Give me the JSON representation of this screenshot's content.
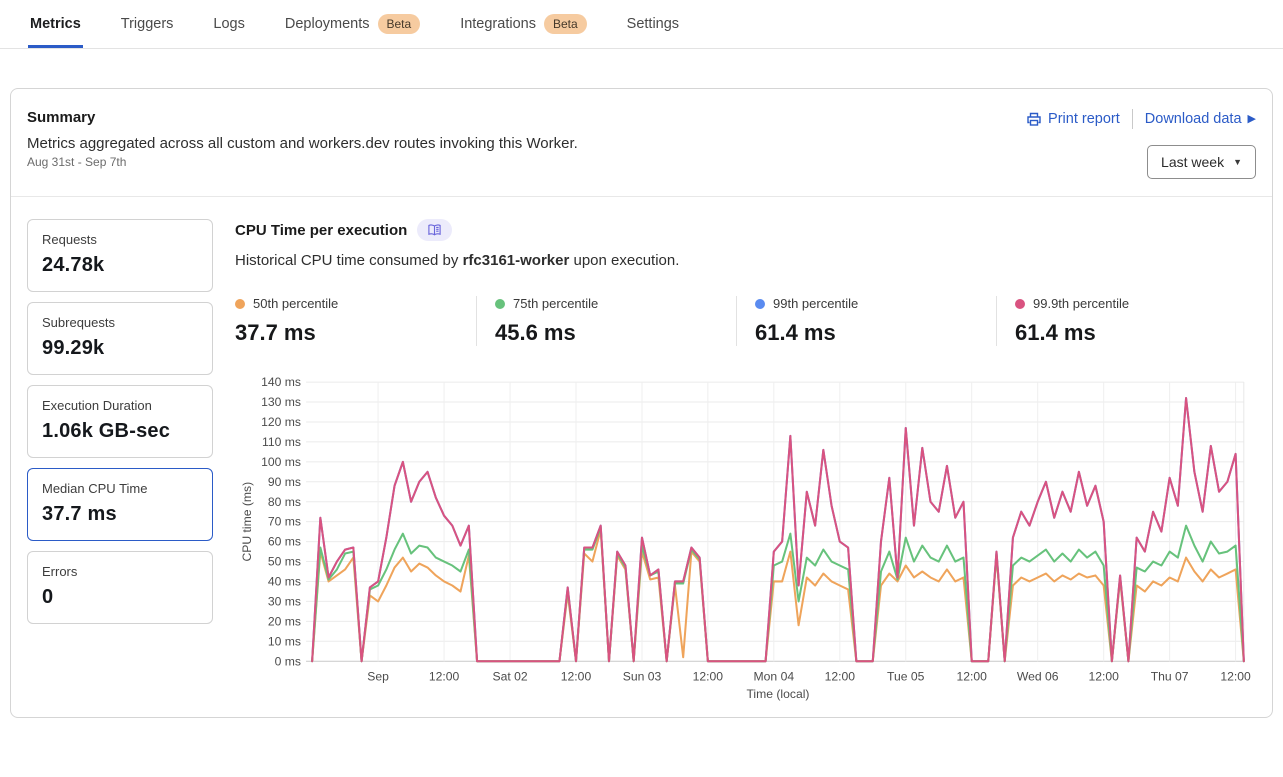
{
  "nav": {
    "tabs": [
      {
        "label": "Metrics",
        "active": true
      },
      {
        "label": "Triggers"
      },
      {
        "label": "Logs"
      },
      {
        "label": "Deployments",
        "badge": "Beta"
      },
      {
        "label": "Integrations",
        "badge": "Beta"
      },
      {
        "label": "Settings"
      }
    ]
  },
  "summary": {
    "title": "Summary",
    "description": "Metrics aggregated across all custom and workers.dev routes invoking this Worker.",
    "date_range": "Aug 31st - Sep 7th",
    "print_report": "Print report",
    "download_data": "Download data",
    "time_range": "Last week"
  },
  "stats": [
    {
      "label": "Requests",
      "value": "24.78k",
      "selected": false
    },
    {
      "label": "Subrequests",
      "value": "99.29k",
      "selected": false
    },
    {
      "label": "Execution Duration",
      "value": "1.06k GB-sec",
      "selected": false
    },
    {
      "label": "Median CPU Time",
      "value": "37.7 ms",
      "selected": true
    },
    {
      "label": "Errors",
      "value": "0",
      "selected": false
    }
  ],
  "chart": {
    "title": "CPU Time per execution",
    "subtitle_prefix": "Historical CPU time consumed by ",
    "worker_name": "rfc3161-worker",
    "subtitle_suffix": " upon execution.",
    "percentiles": [
      {
        "label": "50th percentile",
        "value": "37.7 ms",
        "color": "#EFA45B"
      },
      {
        "label": "75th percentile",
        "value": "45.6 ms",
        "color": "#67C27C"
      },
      {
        "label": "99th percentile",
        "value": "61.4 ms",
        "color": "#5A8BF0"
      },
      {
        "label": "99.9th percentile",
        "value": "61.4 ms",
        "color": "#D95380"
      }
    ]
  },
  "colors": {
    "accent_blue": "#2B5BC7",
    "beta_badge_bg": "#F6CBA0",
    "doc_pill_bg": "#ECEBFB",
    "doc_icon_purple": "#6965DB"
  },
  "chart_data": {
    "type": "line",
    "title": "CPU Time per execution",
    "xlabel": "Time (local)",
    "ylabel": "CPU time (ms)",
    "ylim": [
      0,
      140
    ],
    "grid": true,
    "legend_position": "top",
    "x_range": "Aug 31 ~12:00 to Sep 7 ~13:30 local, one point per 1.5 h",
    "y_ticks": [
      "0 ms",
      "10 ms",
      "20 ms",
      "30 ms",
      "40 ms",
      "50 ms",
      "60 ms",
      "70 ms",
      "80 ms",
      "90 ms",
      "100 ms",
      "110 ms",
      "120 ms",
      "130 ms",
      "140 ms"
    ],
    "x_tick_labels": [
      "Sep",
      "12:00",
      "Sat 02",
      "12:00",
      "Sun 03",
      "12:00",
      "Mon 04",
      "12:00",
      "Tue 05",
      "12:00",
      "Wed 06",
      "12:00",
      "Thu 07",
      "12:00"
    ],
    "x_tick_indices": [
      8,
      16,
      24,
      32,
      40,
      48,
      56,
      64,
      72,
      80,
      88,
      96,
      104,
      112
    ],
    "draw_order": [
      2,
      0,
      1,
      3
    ],
    "series": [
      {
        "name": "50th percentile",
        "color": "#EFA45B",
        "values": [
          0,
          55,
          40,
          43,
          46,
          52,
          0,
          33,
          30,
          38,
          47,
          52,
          45,
          49,
          47,
          43,
          40,
          38,
          35,
          53,
          0,
          0,
          0,
          0,
          0,
          0,
          0,
          0,
          0,
          0,
          0,
          34,
          0,
          54,
          50,
          66,
          0,
          53,
          46,
          0,
          55,
          41,
          42,
          0,
          38,
          2,
          55,
          50,
          0,
          0,
          0,
          0,
          0,
          0,
          0,
          0,
          40,
          40,
          55,
          18,
          42,
          38,
          44,
          40,
          38,
          36,
          0,
          0,
          0,
          38,
          44,
          40,
          48,
          42,
          45,
          42,
          40,
          46,
          40,
          42,
          0,
          0,
          0,
          53,
          0,
          38,
          42,
          40,
          42,
          44,
          40,
          43,
          41,
          44,
          42,
          43,
          38,
          0,
          41,
          0,
          38,
          35,
          40,
          38,
          42,
          40,
          52,
          45,
          40,
          46,
          42,
          44,
          46,
          0
        ]
      },
      {
        "name": "75th percentile",
        "color": "#67C27C",
        "values": [
          0,
          57,
          41,
          46,
          54,
          55,
          0,
          36,
          38,
          46,
          56,
          64,
          54,
          58,
          57,
          52,
          50,
          48,
          45,
          56,
          0,
          0,
          0,
          0,
          0,
          0,
          0,
          0,
          0,
          0,
          0,
          36,
          0,
          56,
          56,
          67,
          0,
          54,
          47,
          0,
          58,
          43,
          45,
          0,
          39,
          39,
          56,
          51,
          0,
          0,
          0,
          0,
          0,
          0,
          0,
          0,
          48,
          50,
          64,
          30,
          52,
          48,
          56,
          50,
          48,
          46,
          0,
          0,
          0,
          45,
          55,
          41,
          62,
          50,
          58,
          52,
          50,
          58,
          50,
          52,
          0,
          0,
          0,
          54,
          0,
          48,
          52,
          50,
          53,
          56,
          50,
          54,
          50,
          56,
          52,
          55,
          48,
          0,
          42,
          0,
          47,
          45,
          50,
          48,
          55,
          52,
          68,
          58,
          50,
          60,
          54,
          55,
          58,
          0
        ]
      },
      {
        "name": "99th percentile",
        "color": "#5A8BF0",
        "values": [
          0,
          72,
          42,
          50,
          56,
          57,
          0,
          37,
          40,
          62,
          88,
          100,
          80,
          90,
          95,
          82,
          73,
          68,
          58,
          68,
          0,
          0,
          0,
          0,
          0,
          0,
          0,
          0,
          0,
          0,
          0,
          37,
          0,
          57,
          57,
          68,
          0,
          55,
          48,
          0,
          62,
          43,
          46,
          0,
          40,
          40,
          57,
          52,
          0,
          0,
          0,
          0,
          0,
          0,
          0,
          0,
          55,
          60,
          113,
          38,
          85,
          68,
          106,
          78,
          60,
          57,
          0,
          0,
          0,
          60,
          92,
          42,
          117,
          68,
          107,
          80,
          75,
          98,
          72,
          80,
          0,
          0,
          0,
          55,
          0,
          62,
          75,
          68,
          80,
          90,
          72,
          85,
          75,
          95,
          78,
          88,
          70,
          0,
          43,
          0,
          62,
          55,
          75,
          65,
          92,
          78,
          132,
          95,
          75,
          108,
          85,
          90,
          104,
          0
        ]
      },
      {
        "name": "99.9th percentile",
        "color": "#D95380",
        "values": [
          0,
          72,
          42,
          50,
          56,
          57,
          0,
          37,
          40,
          62,
          88,
          100,
          80,
          90,
          95,
          82,
          73,
          68,
          58,
          68,
          0,
          0,
          0,
          0,
          0,
          0,
          0,
          0,
          0,
          0,
          0,
          37,
          0,
          57,
          57,
          68,
          0,
          55,
          48,
          0,
          62,
          43,
          46,
          0,
          40,
          40,
          57,
          52,
          0,
          0,
          0,
          0,
          0,
          0,
          0,
          0,
          55,
          60,
          113,
          38,
          85,
          68,
          106,
          78,
          60,
          57,
          0,
          0,
          0,
          60,
          92,
          42,
          117,
          68,
          107,
          80,
          75,
          98,
          72,
          80,
          0,
          0,
          0,
          55,
          0,
          62,
          75,
          68,
          80,
          90,
          72,
          85,
          75,
          95,
          78,
          88,
          70,
          0,
          43,
          0,
          62,
          55,
          75,
          65,
          92,
          78,
          132,
          95,
          75,
          108,
          85,
          90,
          104,
          0
        ]
      }
    ]
  }
}
